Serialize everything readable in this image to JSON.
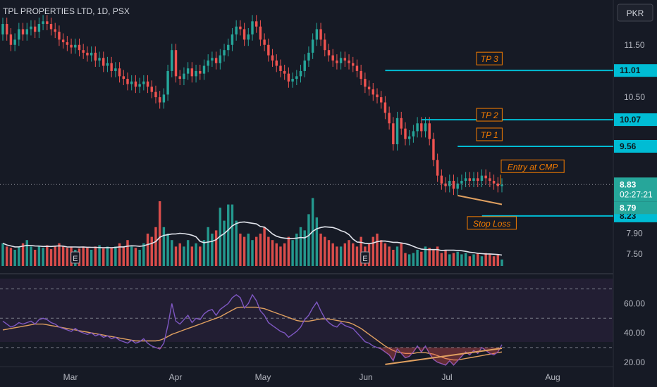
{
  "header": {
    "symbol_title": "TPL PROPERTIES LTD, 1D, PSX",
    "currency": "PKR"
  },
  "price_axis": {
    "ticks": [
      "11.50",
      "10.50",
      "7.90",
      "7.50"
    ],
    "ticks_values": [
      11.5,
      10.5,
      7.9,
      7.5
    ]
  },
  "rsi_axis": {
    "ticks": [
      "60.00",
      "40.00",
      "20.00"
    ],
    "ticks_values": [
      60,
      40,
      20
    ]
  },
  "time_axis": {
    "labels": [
      "Mar",
      "Apr",
      "May",
      "Jun",
      "Jul",
      "Aug"
    ]
  },
  "earnings_marker": "E",
  "annotations": {
    "tp3": {
      "label": "TP 3",
      "value": "11.01"
    },
    "tp2": {
      "label": "TP 2",
      "value": "10.07"
    },
    "tp1": {
      "label": "TP 1",
      "value": "9.56"
    },
    "entry": {
      "label": "Entry at CMP"
    },
    "stop": {
      "label": "Stop Loss",
      "value": "8.23"
    }
  },
  "current_price": {
    "value": "8.83",
    "countdown": "02:27:21"
  },
  "prev_price": "8.79",
  "colors": {
    "up": "#26a69a",
    "down": "#ef5350",
    "level_line": "#00bcd4",
    "annotation": "#f57c00",
    "trendline": "#e0a060",
    "volume_ma": "#e0e3eb",
    "rsi": "#7e57c2",
    "rsi_ma": "#e0a060",
    "background": "#161a25"
  },
  "chart_data": {
    "type": "candlestick",
    "x_range": [
      "Feb",
      "Aug"
    ],
    "price_range": [
      7.3,
      12.25
    ],
    "rsi_range": [
      17,
      77
    ],
    "rsi_levels": [
      70,
      50,
      30
    ],
    "targets": [
      11.01,
      10.07,
      9.56
    ],
    "stop_loss": 8.23,
    "current_price": 8.83,
    "close": [
      11.9,
      11.7,
      11.5,
      11.6,
      11.8,
      11.7,
      11.8,
      11.85,
      11.75,
      11.9,
      11.95,
      11.9,
      11.8,
      11.75,
      11.6,
      11.55,
      11.5,
      11.45,
      11.5,
      11.4,
      11.35,
      11.3,
      11.35,
      11.2,
      11.25,
      11.1,
      11.15,
      11.0,
      11.05,
      10.9,
      10.85,
      10.75,
      10.8,
      10.7,
      10.75,
      10.8,
      10.7,
      10.6,
      10.5,
      10.4,
      10.55,
      11.0,
      11.4,
      10.9,
      10.85,
      10.95,
      11.05,
      10.9,
      11.0,
      10.95,
      11.1,
      11.2,
      11.25,
      11.15,
      11.3,
      11.4,
      11.5,
      11.7,
      11.85,
      11.8,
      11.6,
      11.7,
      11.95,
      11.85,
      11.6,
      11.5,
      11.3,
      11.2,
      11.1,
      11.0,
      10.95,
      10.8,
      10.85,
      10.9,
      11.0,
      11.2,
      11.35,
      11.6,
      11.8,
      11.6,
      11.4,
      11.3,
      11.2,
      11.15,
      11.25,
      11.2,
      11.15,
      11.1,
      11.0,
      10.85,
      10.7,
      10.65,
      10.55,
      10.5,
      10.4,
      10.2,
      10.0,
      9.6,
      10.1,
      9.9,
      9.7,
      9.75,
      9.85,
      10.0,
      9.85,
      10.0,
      9.7,
      9.3,
      9.0,
      8.85,
      8.8,
      8.9,
      8.75,
      8.85,
      8.9,
      8.95,
      8.9,
      8.95,
      8.9,
      9.0,
      8.95,
      8.9,
      8.85,
      8.8,
      8.83
    ],
    "open": [
      11.7,
      11.9,
      11.7,
      11.5,
      11.6,
      11.8,
      11.7,
      11.8,
      11.85,
      11.75,
      11.9,
      11.95,
      11.9,
      11.8,
      11.75,
      11.6,
      11.55,
      11.5,
      11.45,
      11.5,
      11.4,
      11.35,
      11.3,
      11.35,
      11.2,
      11.25,
      11.1,
      11.15,
      11.0,
      11.05,
      10.9,
      10.85,
      10.75,
      10.8,
      10.7,
      10.75,
      10.8,
      10.7,
      10.6,
      10.5,
      10.4,
      10.55,
      11.0,
      11.4,
      10.9,
      10.85,
      10.95,
      11.05,
      10.9,
      11.0,
      10.95,
      11.1,
      11.2,
      11.25,
      11.15,
      11.3,
      11.4,
      11.5,
      11.7,
      11.85,
      11.8,
      11.6,
      11.7,
      11.95,
      11.85,
      11.6,
      11.5,
      11.3,
      11.2,
      11.1,
      11.0,
      10.95,
      10.8,
      10.85,
      10.9,
      11.0,
      11.2,
      11.35,
      11.6,
      11.8,
      11.6,
      11.4,
      11.3,
      11.2,
      11.15,
      11.25,
      11.2,
      11.15,
      11.1,
      11.0,
      10.85,
      10.7,
      10.65,
      10.55,
      10.5,
      10.4,
      10.2,
      10.0,
      9.6,
      10.1,
      9.9,
      9.7,
      9.75,
      9.85,
      10.0,
      9.85,
      10.0,
      9.7,
      9.3,
      9.0,
      8.85,
      8.8,
      8.9,
      8.75,
      8.85,
      8.9,
      8.95,
      8.9,
      8.95,
      8.9,
      9.0,
      8.95,
      8.9,
      8.85,
      8.8
    ],
    "volume": [
      0.35,
      0.3,
      0.28,
      0.25,
      0.3,
      0.35,
      0.4,
      0.3,
      0.25,
      0.3,
      0.28,
      0.32,
      0.26,
      0.3,
      0.35,
      0.3,
      0.28,
      0.3,
      0.25,
      0.27,
      0.3,
      0.28,
      0.25,
      0.3,
      0.32,
      0.27,
      0.3,
      0.28,
      0.3,
      0.35,
      0.3,
      0.4,
      0.3,
      0.28,
      0.25,
      0.35,
      0.5,
      0.45,
      0.6,
      1.0,
      0.6,
      0.5,
      0.4,
      0.3,
      0.35,
      0.3,
      0.4,
      0.3,
      0.35,
      0.3,
      0.4,
      0.6,
      0.5,
      0.55,
      0.9,
      0.7,
      0.95,
      0.95,
      0.7,
      0.5,
      0.45,
      0.5,
      0.4,
      0.45,
      0.5,
      0.6,
      0.45,
      0.4,
      0.35,
      0.3,
      0.35,
      0.45,
      0.4,
      0.5,
      0.6,
      0.55,
      0.8,
      1.05,
      0.75,
      0.5,
      0.45,
      0.4,
      0.35,
      0.3,
      0.3,
      0.35,
      0.4,
      0.35,
      0.3,
      0.45,
      0.3,
      0.35,
      0.45,
      0.5,
      0.4,
      0.35,
      0.3,
      0.25,
      0.3,
      0.35,
      0.2,
      0.18,
      0.2,
      0.25,
      0.22,
      0.3,
      0.28,
      0.25,
      0.3,
      0.2,
      0.25,
      0.18,
      0.2,
      0.22,
      0.18,
      0.2,
      0.15,
      0.18,
      0.2,
      0.15,
      0.2,
      0.18,
      0.15,
      0.18,
      0.1
    ],
    "rsi": [
      48,
      46,
      44,
      45,
      47,
      46,
      47,
      48,
      46,
      49,
      50,
      49,
      47,
      46,
      44,
      43,
      42,
      41,
      43,
      41,
      40,
      39,
      40,
      38,
      39,
      37,
      38,
      36,
      37,
      35,
      34,
      33,
      35,
      33,
      34,
      36,
      33,
      31,
      30,
      29,
      33,
      45,
      60,
      48,
      46,
      49,
      52,
      47,
      50,
      49,
      53,
      55,
      56,
      52,
      56,
      58,
      60,
      64,
      66,
      64,
      57,
      60,
      66,
      62,
      55,
      52,
      47,
      45,
      43,
      41,
      40,
      37,
      39,
      41,
      44,
      49,
      52,
      57,
      61,
      55,
      50,
      47,
      45,
      44,
      47,
      45,
      44,
      43,
      40,
      37,
      34,
      33,
      31,
      30,
      29,
      27,
      25,
      21,
      29,
      26,
      23,
      24,
      27,
      31,
      27,
      31,
      26,
      22,
      20,
      19,
      18,
      21,
      18,
      21,
      24,
      27,
      25,
      28,
      26,
      30,
      28,
      26,
      25,
      27,
      32
    ],
    "rsi_ma": [
      42,
      42.5,
      43,
      43.5,
      44,
      44.5,
      45,
      45.5,
      46,
      46,
      46,
      45.5,
      45,
      44.5,
      44,
      43.5,
      43,
      42.5,
      42,
      41.5,
      41,
      40.5,
      40,
      39.5,
      39,
      38.5,
      38,
      37.5,
      37,
      36.5,
      36,
      35.5,
      35,
      34.5,
      34.5,
      34.5,
      34.5,
      34.5,
      34.5,
      35,
      36,
      37.5,
      39,
      40,
      41,
      42,
      43,
      44,
      45,
      46,
      47,
      48,
      49,
      50,
      51,
      52.5,
      54,
      55.5,
      57,
      57.5,
      57.5,
      57.5,
      57.5,
      57.5,
      57,
      56.5,
      55.5,
      54.5,
      53.5,
      52.5,
      51.5,
      50.5,
      49.5,
      48.5,
      48,
      48,
      48,
      48.5,
      49,
      49.5,
      49.5,
      49.5,
      49,
      48.5,
      48,
      47.5,
      47,
      46,
      44.5,
      43,
      41,
      39,
      37,
      35,
      33,
      31,
      29.5,
      28,
      27,
      26.5,
      26,
      26,
      26,
      26.5,
      26.5,
      26.5,
      26,
      25.5,
      24.5,
      23.5,
      22.5,
      22,
      21.5,
      21.5,
      22,
      22.5,
      23,
      23.5,
      24,
      24.5,
      25,
      25.5,
      26,
      26.5,
      27
    ]
  }
}
